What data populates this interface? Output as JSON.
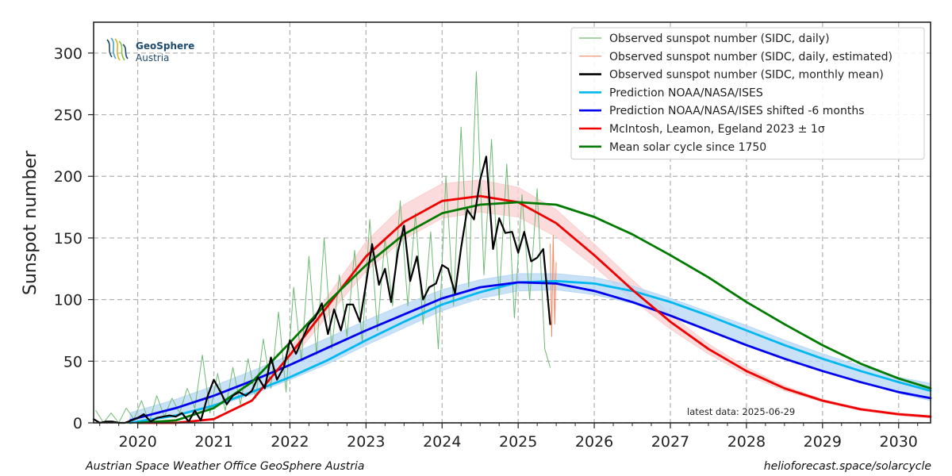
{
  "chart_data": {
    "type": "line",
    "title": "",
    "xlabel": "",
    "ylabel": "Sunspot number",
    "xlim": [
      2019.42,
      2030.42
    ],
    "ylim": [
      0,
      325
    ],
    "x_ticks": [
      2020,
      2021,
      2022,
      2023,
      2024,
      2025,
      2026,
      2027,
      2028,
      2029,
      2030
    ],
    "x_tick_labels": [
      "2020",
      "2021",
      "2022",
      "2023",
      "2024",
      "2025",
      "2026",
      "2027",
      "2028",
      "2029",
      "2030"
    ],
    "y_ticks": [
      0,
      50,
      100,
      150,
      200,
      250,
      300
    ],
    "y_tick_labels": [
      "0",
      "50",
      "100",
      "150",
      "200",
      "250",
      "300"
    ],
    "grid": true,
    "legend_position": "top-right",
    "colors": {
      "daily": "#6fba74",
      "estimated": "#f08a62",
      "monthly": "#000000",
      "noaa": "#00b8f0",
      "noaa_shifted": "#0000ee",
      "noaa_band": "#b7d7f4",
      "mcintosh": "#ee0000",
      "mcintosh_band": "#f9cfcf",
      "mean": "#007a00"
    },
    "series": [
      {
        "key": "daily",
        "name": "Observed sunspot number (SIDC, daily)",
        "style": "thin-line",
        "x": [
          2019.45,
          2019.55,
          2019.65,
          2019.75,
          2019.85,
          2019.95,
          2020.05,
          2020.15,
          2020.25,
          2020.35,
          2020.45,
          2020.55,
          2020.65,
          2020.75,
          2020.85,
          2020.95,
          2021.05,
          2021.15,
          2021.25,
          2021.35,
          2021.45,
          2021.55,
          2021.65,
          2021.75,
          2021.85,
          2021.95,
          2022.05,
          2022.15,
          2022.25,
          2022.35,
          2022.45,
          2022.55,
          2022.65,
          2022.75,
          2022.85,
          2022.95,
          2023.05,
          2023.15,
          2023.25,
          2023.35,
          2023.45,
          2023.55,
          2023.65,
          2023.75,
          2023.85,
          2023.95,
          2024.05,
          2024.15,
          2024.25,
          2024.35,
          2024.45,
          2024.55,
          2024.65,
          2024.75,
          2024.85,
          2024.95,
          2025.05,
          2025.15,
          2025.25,
          2025.35,
          2025.42
        ],
        "y": [
          10,
          0,
          8,
          0,
          12,
          3,
          18,
          0,
          22,
          5,
          20,
          8,
          28,
          12,
          55,
          8,
          40,
          10,
          45,
          15,
          52,
          20,
          68,
          28,
          90,
          25,
          110,
          50,
          135,
          55,
          150,
          60,
          120,
          70,
          140,
          65,
          165,
          75,
          150,
          95,
          180,
          95,
          170,
          80,
          155,
          60,
          200,
          95,
          240,
          110,
          285,
          120,
          230,
          100,
          210,
          85,
          185,
          100,
          190,
          60,
          45
        ]
      },
      {
        "key": "estimated",
        "name": "Observed sunspot number (SIDC, daily, estimated)",
        "style": "thin-line",
        "x": [
          2025.42,
          2025.44,
          2025.46,
          2025.48,
          2025.5
        ],
        "y": [
          145,
          70,
          152,
          80,
          130
        ]
      },
      {
        "key": "monthly",
        "name": "Observed sunspot number (SIDC, monthly mean)",
        "style": "line",
        "x": [
          2019.42,
          2019.5,
          2019.58,
          2019.67,
          2019.75,
          2019.83,
          2019.92,
          2020.0,
          2020.08,
          2020.17,
          2020.25,
          2020.33,
          2020.42,
          2020.5,
          2020.58,
          2020.67,
          2020.75,
          2020.83,
          2020.92,
          2021.0,
          2021.08,
          2021.17,
          2021.25,
          2021.33,
          2021.42,
          2021.5,
          2021.58,
          2021.67,
          2021.75,
          2021.83,
          2021.92,
          2022.0,
          2022.08,
          2022.17,
          2022.25,
          2022.33,
          2022.42,
          2022.5,
          2022.58,
          2022.67,
          2022.75,
          2022.83,
          2022.92,
          2023.0,
          2023.08,
          2023.17,
          2023.25,
          2023.33,
          2023.42,
          2023.5,
          2023.58,
          2023.67,
          2023.75,
          2023.83,
          2023.92,
          2024.0,
          2024.08,
          2024.17,
          2024.25,
          2024.33,
          2024.42,
          2024.5,
          2024.58,
          2024.67,
          2024.75,
          2024.83,
          2024.92,
          2025.0,
          2025.08,
          2025.17,
          2025.25,
          2025.33,
          2025.42
        ],
        "y": [
          3,
          0,
          1,
          1,
          0,
          0,
          2,
          4,
          7,
          1,
          4,
          5,
          6,
          5,
          8,
          1,
          10,
          2,
          22,
          35,
          26,
          15,
          22,
          25,
          22,
          26,
          37,
          28,
          53,
          35,
          45,
          67,
          56,
          69,
          80,
          85,
          97,
          72,
          92,
          75,
          96,
          96,
          82,
          113,
          145,
          112,
          125,
          98,
          139,
          160,
          115,
          135,
          100,
          110,
          113,
          128,
          125,
          105,
          142,
          173,
          165,
          197,
          216,
          141,
          166,
          154,
          155,
          138,
          155,
          131,
          134,
          141,
          80
        ]
      },
      {
        "key": "noaa",
        "name": "Prediction NOAA/NASA/ISES",
        "style": "line",
        "x": [
          2019.9,
          2020.0,
          2020.5,
          2021.0,
          2021.5,
          2022.0,
          2022.5,
          2023.0,
          2023.5,
          2024.0,
          2024.5,
          2025.0,
          2025.5,
          2026.0,
          2026.5,
          2027.0,
          2027.5,
          2028.0,
          2028.5,
          2029.0,
          2029.5,
          2030.0,
          2030.42
        ],
        "y": [
          0,
          1,
          6,
          14,
          25,
          37,
          51,
          67,
          82,
          96,
          106,
          114,
          115,
          113,
          107,
          98,
          87,
          75,
          63,
          52,
          42,
          33,
          26
        ]
      },
      {
        "key": "noaa_shifted",
        "name": "Prediction NOAA/NASA/ISES shifted -6 months",
        "style": "line",
        "x": [
          2019.9,
          2020.0,
          2020.5,
          2021.0,
          2021.5,
          2022.0,
          2022.5,
          2023.0,
          2023.5,
          2024.0,
          2024.5,
          2025.0,
          2025.5,
          2026.0,
          2026.5,
          2027.0,
          2027.5,
          2028.0,
          2028.5,
          2029.0,
          2029.5,
          2030.0,
          2030.42
        ],
        "y": [
          2,
          4,
          12,
          22,
          34,
          47,
          61,
          75,
          88,
          101,
          110,
          114,
          113,
          107,
          98,
          87,
          75,
          63,
          52,
          42,
          33,
          25,
          20
        ]
      },
      {
        "key": "mcintosh",
        "name": "McIntosh, Leamon, Egeland 2023 ± 1σ",
        "style": "line",
        "x": [
          2020.0,
          2020.5,
          2021.0,
          2021.5,
          2022.0,
          2022.5,
          2023.0,
          2023.5,
          2024.0,
          2024.5,
          2025.0,
          2025.5,
          2026.0,
          2026.5,
          2027.0,
          2027.5,
          2028.0,
          2028.5,
          2029.0,
          2029.5,
          2030.0,
          2030.42
        ],
        "y": [
          0,
          0,
          3,
          18,
          55,
          95,
          135,
          163,
          180,
          184,
          179,
          162,
          136,
          108,
          82,
          60,
          42,
          28,
          18,
          11,
          7,
          5
        ]
      },
      {
        "key": "mean",
        "name": "Mean solar cycle since 1750",
        "style": "line",
        "x": [
          2020.0,
          2020.5,
          2021.0,
          2021.5,
          2022.0,
          2022.5,
          2023.0,
          2023.5,
          2024.0,
          2024.5,
          2025.0,
          2025.5,
          2026.0,
          2026.5,
          2027.0,
          2027.5,
          2028.0,
          2028.5,
          2029.0,
          2029.5,
          2030.0,
          2030.42
        ],
        "y": [
          0,
          2,
          12,
          33,
          65,
          98,
          128,
          153,
          170,
          177,
          179,
          177,
          167,
          153,
          136,
          118,
          98,
          80,
          63,
          48,
          36,
          28
        ]
      }
    ],
    "bands": [
      {
        "key": "mcintosh_band",
        "x": [
          2022.0,
          2022.5,
          2023.0,
          2023.5,
          2024.0,
          2024.5,
          2025.0,
          2025.5,
          2026.0,
          2026.5,
          2027.0,
          2027.5,
          2028.0,
          2028.5,
          2029.0,
          2029.5,
          2030.0,
          2030.42
        ],
        "lower": [
          50,
          87,
          123,
          149,
          166,
          171,
          167,
          151,
          127,
          100,
          76,
          56,
          39,
          26,
          17,
          10,
          6,
          4
        ],
        "upper": [
          60,
          103,
          147,
          177,
          194,
          197,
          191,
          173,
          145,
          116,
          88,
          64,
          45,
          30,
          19,
          12,
          8,
          6
        ]
      },
      {
        "key": "noaa_band",
        "x": [
          2019.9,
          2020.0,
          2020.5,
          2021.0,
          2021.5,
          2022.0,
          2022.5,
          2023.0,
          2023.5,
          2024.0,
          2024.5,
          2025.0,
          2025.5,
          2026.0,
          2026.5,
          2027.0,
          2027.5,
          2028.0,
          2028.5,
          2029.0,
          2029.5,
          2030.0,
          2030.42
        ],
        "lower": [
          0,
          1,
          5,
          13,
          23,
          35,
          48,
          63,
          77,
          91,
          101,
          107,
          108,
          104,
          97,
          87,
          76,
          64,
          53,
          42,
          33,
          24,
          18
        ],
        "upper": [
          8,
          10,
          19,
          30,
          42,
          55,
          69,
          83,
          96,
          108,
          116,
          121,
          121,
          118,
          111,
          101,
          90,
          79,
          67,
          56,
          46,
          37,
          32
        ]
      }
    ],
    "annotations": [
      {
        "key": "latest",
        "text": "latest data: 2025-06-29"
      }
    ]
  },
  "logo": {
    "name": "GeoSphere",
    "sub": "Austria"
  },
  "footer": {
    "left": "Austrian Space Weather Office   GeoSphere Austria",
    "right": "helioforecast.space/solarcycle"
  }
}
